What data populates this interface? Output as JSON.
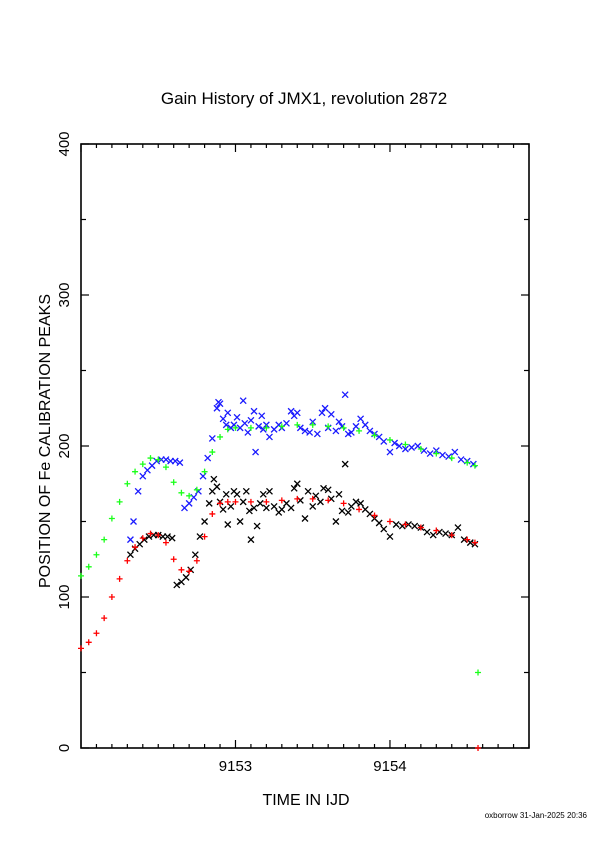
{
  "chart_data": {
    "type": "scatter",
    "title": "Gain History of JMX1, revolution 2872",
    "xlabel": "TIME IN IJD",
    "ylabel": "POSITION OF Fe CALIBRATION PEAKS",
    "xlim": [
      9152.0,
      9154.9
    ],
    "ylim": [
      0,
      400
    ],
    "x_ticks": [
      "9153",
      "9154"
    ],
    "y_ticks": [
      "0",
      "100",
      "200",
      "300",
      "400"
    ],
    "grid": false,
    "footer": "oxborrow 31-Jan-2025 20:36",
    "colors": {
      "blue": "#1a1aff",
      "green": "#1aff1a",
      "black": "#000000",
      "red": "#ff0000"
    },
    "series": [
      {
        "color": "blue",
        "marker": "x",
        "role": "scatter-upper",
        "points": [
          [
            9152.32,
            138
          ],
          [
            9152.34,
            150
          ],
          [
            9152.37,
            170
          ],
          [
            9152.4,
            180
          ],
          [
            9152.43,
            184
          ],
          [
            9152.46,
            187
          ],
          [
            9152.49,
            190
          ],
          [
            9152.52,
            191
          ],
          [
            9152.55,
            191
          ],
          [
            9152.58,
            190
          ],
          [
            9152.61,
            190
          ],
          [
            9152.64,
            189
          ],
          [
            9152.67,
            159
          ],
          [
            9152.7,
            162
          ],
          [
            9152.73,
            166
          ],
          [
            9152.76,
            170
          ],
          [
            9152.79,
            180
          ],
          [
            9152.82,
            192
          ],
          [
            9152.85,
            205
          ],
          [
            9152.88,
            225
          ],
          [
            9152.89,
            229
          ],
          [
            9152.9,
            228
          ],
          [
            9152.92,
            218
          ],
          [
            9152.94,
            214
          ],
          [
            9152.95,
            222
          ],
          [
            9152.97,
            212
          ],
          [
            9152.99,
            214
          ],
          [
            9153.01,
            219
          ],
          [
            9153.03,
            212
          ],
          [
            9153.05,
            230
          ],
          [
            9153.06,
            215
          ],
          [
            9153.08,
            209
          ],
          [
            9153.1,
            217
          ],
          [
            9153.12,
            223
          ],
          [
            9153.13,
            196
          ],
          [
            9153.15,
            213
          ],
          [
            9153.17,
            220
          ],
          [
            9153.18,
            211
          ],
          [
            9153.2,
            214
          ],
          [
            9153.22,
            206
          ],
          [
            9153.25,
            211
          ],
          [
            9153.28,
            214
          ],
          [
            9153.3,
            212
          ],
          [
            9153.33,
            215
          ],
          [
            9153.36,
            223
          ],
          [
            9153.38,
            220
          ],
          [
            9153.4,
            222
          ],
          [
            9153.42,
            212
          ],
          [
            9153.45,
            210
          ],
          [
            9153.48,
            209
          ],
          [
            9153.5,
            216
          ],
          [
            9153.53,
            208
          ],
          [
            9153.56,
            222
          ],
          [
            9153.58,
            225
          ],
          [
            9153.6,
            212
          ],
          [
            9153.62,
            221
          ],
          [
            9153.65,
            210
          ],
          [
            9153.67,
            216
          ],
          [
            9153.69,
            213
          ],
          [
            9153.71,
            234
          ],
          [
            9153.73,
            208
          ],
          [
            9153.75,
            209
          ],
          [
            9153.78,
            213
          ],
          [
            9153.81,
            218
          ],
          [
            9153.84,
            214
          ],
          [
            9153.87,
            210
          ],
          [
            9153.9,
            208
          ],
          [
            9153.93,
            206
          ],
          [
            9153.96,
            203
          ],
          [
            9154.0,
            196
          ],
          [
            9154.03,
            202
          ],
          [
            9154.06,
            200
          ],
          [
            9154.1,
            198
          ],
          [
            9154.14,
            199
          ],
          [
            9154.18,
            200
          ],
          [
            9154.22,
            197
          ],
          [
            9154.26,
            195
          ],
          [
            9154.3,
            197
          ],
          [
            9154.34,
            194
          ],
          [
            9154.38,
            193
          ],
          [
            9154.42,
            196
          ],
          [
            9154.46,
            191
          ],
          [
            9154.5,
            190
          ],
          [
            9154.54,
            188
          ]
        ]
      },
      {
        "color": "green",
        "marker": "+",
        "role": "fit-upper",
        "points": [
          [
            9152.0,
            114
          ],
          [
            9152.05,
            120
          ],
          [
            9152.1,
            128
          ],
          [
            9152.15,
            138
          ],
          [
            9152.2,
            152
          ],
          [
            9152.25,
            163
          ],
          [
            9152.3,
            175
          ],
          [
            9152.35,
            183
          ],
          [
            9152.4,
            188
          ],
          [
            9152.45,
            192
          ],
          [
            9152.5,
            191
          ],
          [
            9152.55,
            186
          ],
          [
            9152.6,
            176
          ],
          [
            9152.65,
            169
          ],
          [
            9152.7,
            167
          ],
          [
            9152.75,
            171
          ],
          [
            9152.8,
            183
          ],
          [
            9152.85,
            196
          ],
          [
            9152.9,
            206
          ],
          [
            9152.95,
            211
          ],
          [
            9153.0,
            212
          ],
          [
            9153.1,
            212
          ],
          [
            9153.2,
            212
          ],
          [
            9153.3,
            213
          ],
          [
            9153.4,
            214
          ],
          [
            9153.5,
            214
          ],
          [
            9153.6,
            213
          ],
          [
            9153.7,
            212
          ],
          [
            9153.8,
            210
          ],
          [
            9153.9,
            207
          ],
          [
            9154.0,
            204
          ],
          [
            9154.1,
            201
          ],
          [
            9154.2,
            198
          ],
          [
            9154.3,
            195
          ],
          [
            9154.4,
            192
          ],
          [
            9154.5,
            189
          ],
          [
            9154.55,
            187
          ],
          [
            9154.57,
            50
          ]
        ]
      },
      {
        "color": "black",
        "marker": "x",
        "role": "scatter-lower",
        "points": [
          [
            9152.32,
            128
          ],
          [
            9152.35,
            132
          ],
          [
            9152.38,
            135
          ],
          [
            9152.41,
            138
          ],
          [
            9152.44,
            140
          ],
          [
            9152.47,
            141
          ],
          [
            9152.5,
            141
          ],
          [
            9152.53,
            140
          ],
          [
            9152.56,
            140
          ],
          [
            9152.59,
            139
          ],
          [
            9152.62,
            108
          ],
          [
            9152.65,
            110
          ],
          [
            9152.68,
            113
          ],
          [
            9152.71,
            118
          ],
          [
            9152.74,
            128
          ],
          [
            9152.77,
            140
          ],
          [
            9152.8,
            150
          ],
          [
            9152.83,
            162
          ],
          [
            9152.85,
            170
          ],
          [
            9152.86,
            178
          ],
          [
            9152.88,
            173
          ],
          [
            9152.9,
            163
          ],
          [
            9152.92,
            158
          ],
          [
            9152.94,
            168
          ],
          [
            9152.95,
            148
          ],
          [
            9152.97,
            160
          ],
          [
            9152.99,
            170
          ],
          [
            9153.01,
            168
          ],
          [
            9153.03,
            150
          ],
          [
            9153.05,
            163
          ],
          [
            9153.07,
            170
          ],
          [
            9153.09,
            157
          ],
          [
            9153.1,
            138
          ],
          [
            9153.12,
            159
          ],
          [
            9153.14,
            147
          ],
          [
            9153.16,
            162
          ],
          [
            9153.18,
            168
          ],
          [
            9153.2,
            159
          ],
          [
            9153.22,
            170
          ],
          [
            9153.25,
            160
          ],
          [
            9153.28,
            156
          ],
          [
            9153.3,
            158
          ],
          [
            9153.33,
            162
          ],
          [
            9153.36,
            159
          ],
          [
            9153.38,
            172
          ],
          [
            9153.4,
            175
          ],
          [
            9153.42,
            164
          ],
          [
            9153.45,
            152
          ],
          [
            9153.47,
            170
          ],
          [
            9153.5,
            160
          ],
          [
            9153.52,
            167
          ],
          [
            9153.55,
            163
          ],
          [
            9153.57,
            172
          ],
          [
            9153.6,
            171
          ],
          [
            9153.62,
            165
          ],
          [
            9153.65,
            150
          ],
          [
            9153.67,
            168
          ],
          [
            9153.69,
            157
          ],
          [
            9153.71,
            188
          ],
          [
            9153.73,
            156
          ],
          [
            9153.75,
            160
          ],
          [
            9153.78,
            163
          ],
          [
            9153.81,
            162
          ],
          [
            9153.84,
            158
          ],
          [
            9153.87,
            155
          ],
          [
            9153.9,
            152
          ],
          [
            9153.93,
            149
          ],
          [
            9153.96,
            145
          ],
          [
            9154.0,
            140
          ],
          [
            9154.04,
            148
          ],
          [
            9154.08,
            147
          ],
          [
            9154.12,
            148
          ],
          [
            9154.16,
            147
          ],
          [
            9154.2,
            146
          ],
          [
            9154.24,
            143
          ],
          [
            9154.28,
            141
          ],
          [
            9154.32,
            143
          ],
          [
            9154.36,
            142
          ],
          [
            9154.4,
            141
          ],
          [
            9154.44,
            146
          ],
          [
            9154.48,
            138
          ],
          [
            9154.52,
            136
          ],
          [
            9154.55,
            135
          ]
        ]
      },
      {
        "color": "red",
        "marker": "+",
        "role": "fit-lower",
        "points": [
          [
            9152.0,
            66
          ],
          [
            9152.05,
            70
          ],
          [
            9152.1,
            76
          ],
          [
            9152.15,
            86
          ],
          [
            9152.2,
            100
          ],
          [
            9152.25,
            112
          ],
          [
            9152.3,
            124
          ],
          [
            9152.35,
            133
          ],
          [
            9152.4,
            139
          ],
          [
            9152.45,
            142
          ],
          [
            9152.5,
            141
          ],
          [
            9152.55,
            136
          ],
          [
            9152.6,
            125
          ],
          [
            9152.65,
            118
          ],
          [
            9152.7,
            117
          ],
          [
            9152.75,
            124
          ],
          [
            9152.8,
            140
          ],
          [
            9152.85,
            155
          ],
          [
            9152.9,
            162
          ],
          [
            9152.95,
            163
          ],
          [
            9153.0,
            163
          ],
          [
            9153.1,
            163
          ],
          [
            9153.2,
            163
          ],
          [
            9153.3,
            164
          ],
          [
            9153.4,
            165
          ],
          [
            9153.5,
            165
          ],
          [
            9153.6,
            164
          ],
          [
            9153.7,
            162
          ],
          [
            9153.8,
            158
          ],
          [
            9153.9,
            154
          ],
          [
            9154.0,
            150
          ],
          [
            9154.1,
            148
          ],
          [
            9154.2,
            146
          ],
          [
            9154.3,
            144
          ],
          [
            9154.4,
            141
          ],
          [
            9154.5,
            138
          ],
          [
            9154.55,
            136
          ],
          [
            9154.57,
            0
          ]
        ]
      }
    ]
  }
}
